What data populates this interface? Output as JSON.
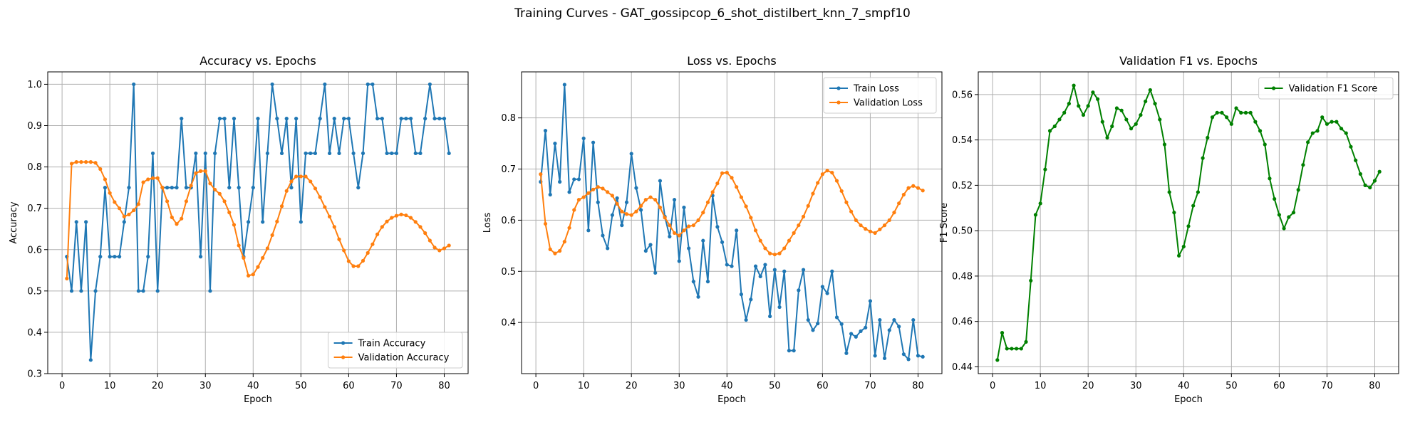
{
  "figure": {
    "suptitle": "Training Curves - GAT_gossipcop_6_shot_distilbert_knn_7_smpf10"
  },
  "chart_data": [
    {
      "type": "line",
      "title": "Accuracy vs. Epochs",
      "xlabel": "Epoch",
      "ylabel": "Accuracy",
      "xlim": [
        -3,
        85
      ],
      "ylim": [
        0.3,
        1.03
      ],
      "xticks": [
        0,
        10,
        20,
        30,
        40,
        50,
        60,
        70,
        80
      ],
      "yticks": [
        0.3,
        0.4,
        0.5,
        0.6,
        0.7,
        0.8,
        0.9,
        1.0
      ],
      "ytick_labels": [
        "0.3",
        "0.4",
        "0.5",
        "0.6",
        "0.7",
        "0.8",
        "0.9",
        "1.0"
      ],
      "grid": true,
      "legend": "lower right",
      "series": [
        {
          "name": "Train Accuracy",
          "color": "#1f77b4",
          "x": [
            1,
            2,
            3,
            4,
            5,
            6,
            7,
            8,
            9,
            10,
            11,
            12,
            13,
            14,
            15,
            16,
            17,
            18,
            19,
            20,
            21,
            22,
            23,
            24,
            25,
            26,
            27,
            28,
            29,
            30,
            31,
            32,
            33,
            34,
            35,
            36,
            37,
            38,
            39,
            40,
            41,
            42,
            43,
            44,
            45,
            46,
            47,
            48,
            49,
            50,
            51,
            52,
            53,
            54,
            55,
            56,
            57,
            58,
            59,
            60,
            61,
            62,
            63,
            64,
            65,
            66,
            67,
            68,
            69,
            70,
            71,
            72,
            73,
            74,
            75,
            76,
            77,
            78,
            79,
            80,
            81
          ],
          "y": [
            0.583,
            0.5,
            0.667,
            0.5,
            0.667,
            0.333,
            0.5,
            0.583,
            0.75,
            0.583,
            0.583,
            0.583,
            0.667,
            0.75,
            1.0,
            0.5,
            0.5,
            0.583,
            0.833,
            0.5,
            0.75,
            0.75,
            0.75,
            0.75,
            0.917,
            0.75,
            0.75,
            0.833,
            0.583,
            0.833,
            0.5,
            0.833,
            0.917,
            0.917,
            0.75,
            0.917,
            0.75,
            0.583,
            0.667,
            0.75,
            0.917,
            0.667,
            0.833,
            1.0,
            0.917,
            0.833,
            0.917,
            0.75,
            0.917,
            0.667,
            0.833,
            0.833,
            0.833,
            0.917,
            1.0,
            0.833,
            0.917,
            0.833,
            0.917,
            0.917,
            0.833,
            0.75,
            0.833,
            1.0,
            1.0,
            0.917,
            0.917,
            0.833,
            0.833,
            0.833,
            0.917,
            0.917,
            0.917,
            0.833,
            0.833,
            0.917,
            1.0,
            0.917,
            0.917,
            0.917,
            0.833
          ]
        },
        {
          "name": "Validation Accuracy",
          "color": "#ff7f0e",
          "x": [
            1,
            2,
            3,
            4,
            5,
            6,
            7,
            8,
            9,
            10,
            11,
            12,
            13,
            14,
            15,
            16,
            17,
            18,
            19,
            20,
            21,
            22,
            23,
            24,
            25,
            26,
            27,
            28,
            29,
            30,
            31,
            32,
            33,
            34,
            35,
            36,
            37,
            38,
            39,
            40,
            41,
            42,
            43,
            44,
            45,
            46,
            47,
            48,
            49,
            50,
            51,
            52,
            53,
            54,
            55,
            56,
            57,
            58,
            59,
            60,
            61,
            62,
            63,
            64,
            65,
            66,
            67,
            68,
            69,
            70,
            71,
            72,
            73,
            74,
            75,
            76,
            77,
            78,
            79,
            80,
            81
          ],
          "y": [
            0.53,
            0.808,
            0.812,
            0.812,
            0.812,
            0.812,
            0.81,
            0.795,
            0.77,
            0.737,
            0.715,
            0.7,
            0.68,
            0.685,
            0.695,
            0.71,
            0.763,
            0.77,
            0.773,
            0.773,
            0.75,
            0.717,
            0.678,
            0.662,
            0.675,
            0.717,
            0.755,
            0.785,
            0.79,
            0.79,
            0.76,
            0.745,
            0.735,
            0.717,
            0.69,
            0.66,
            0.61,
            0.58,
            0.537,
            0.54,
            0.558,
            0.58,
            0.603,
            0.635,
            0.668,
            0.705,
            0.742,
            0.765,
            0.777,
            0.777,
            0.777,
            0.765,
            0.748,
            0.727,
            0.703,
            0.68,
            0.655,
            0.625,
            0.598,
            0.572,
            0.56,
            0.56,
            0.573,
            0.592,
            0.613,
            0.637,
            0.655,
            0.668,
            0.677,
            0.682,
            0.685,
            0.683,
            0.677,
            0.667,
            0.655,
            0.64,
            0.622,
            0.605,
            0.598,
            0.603,
            0.61
          ]
        }
      ]
    },
    {
      "type": "line",
      "title": "Loss vs. Epochs",
      "xlabel": "Epoch",
      "ylabel": "Loss",
      "xlim": [
        -3,
        85
      ],
      "ylim": [
        0.3,
        0.89
      ],
      "xticks": [
        0,
        10,
        20,
        30,
        40,
        50,
        60,
        70,
        80
      ],
      "yticks": [
        0.4,
        0.5,
        0.6,
        0.7,
        0.8
      ],
      "ytick_labels": [
        "0.4",
        "0.5",
        "0.6",
        "0.7",
        "0.8"
      ],
      "grid": true,
      "legend": "upper right",
      "series": [
        {
          "name": "Train Loss",
          "color": "#1f77b4",
          "x": [
            1,
            2,
            3,
            4,
            5,
            6,
            7,
            8,
            9,
            10,
            11,
            12,
            13,
            14,
            15,
            16,
            17,
            18,
            19,
            20,
            21,
            22,
            23,
            24,
            25,
            26,
            27,
            28,
            29,
            30,
            31,
            32,
            33,
            34,
            35,
            36,
            37,
            38,
            39,
            40,
            41,
            42,
            43,
            44,
            45,
            46,
            47,
            48,
            49,
            50,
            51,
            52,
            53,
            54,
            55,
            56,
            57,
            58,
            59,
            60,
            61,
            62,
            63,
            64,
            65,
            66,
            67,
            68,
            69,
            70,
            71,
            72,
            73,
            74,
            75,
            76,
            77,
            78,
            79,
            80,
            81
          ],
          "y": [
            0.675,
            0.775,
            0.65,
            0.75,
            0.675,
            0.865,
            0.655,
            0.68,
            0.68,
            0.76,
            0.58,
            0.752,
            0.635,
            0.57,
            0.545,
            0.61,
            0.643,
            0.59,
            0.635,
            0.73,
            0.663,
            0.62,
            0.54,
            0.552,
            0.497,
            0.677,
            0.607,
            0.568,
            0.64,
            0.52,
            0.625,
            0.545,
            0.48,
            0.45,
            0.56,
            0.48,
            0.648,
            0.587,
            0.557,
            0.513,
            0.51,
            0.58,
            0.455,
            0.405,
            0.445,
            0.51,
            0.49,
            0.513,
            0.412,
            0.503,
            0.43,
            0.5,
            0.345,
            0.345,
            0.463,
            0.503,
            0.405,
            0.385,
            0.398,
            0.47,
            0.457,
            0.5,
            0.41,
            0.397,
            0.34,
            0.378,
            0.372,
            0.383,
            0.39,
            0.442,
            0.335,
            0.405,
            0.33,
            0.385,
            0.405,
            0.392,
            0.338,
            0.328,
            0.405,
            0.335,
            0.333
          ]
        },
        {
          "name": "Validation Loss",
          "color": "#ff7f0e",
          "x": [
            1,
            2,
            3,
            4,
            5,
            6,
            7,
            8,
            9,
            10,
            11,
            12,
            13,
            14,
            15,
            16,
            17,
            18,
            19,
            20,
            21,
            22,
            23,
            24,
            25,
            26,
            27,
            28,
            29,
            30,
            31,
            32,
            33,
            34,
            35,
            36,
            37,
            38,
            39,
            40,
            41,
            42,
            43,
            44,
            45,
            46,
            47,
            48,
            49,
            50,
            51,
            52,
            53,
            54,
            55,
            56,
            57,
            58,
            59,
            60,
            61,
            62,
            63,
            64,
            65,
            66,
            67,
            68,
            69,
            70,
            71,
            72,
            73,
            74,
            75,
            76,
            77,
            78,
            79,
            80,
            81
          ],
          "y": [
            0.69,
            0.593,
            0.543,
            0.535,
            0.54,
            0.558,
            0.585,
            0.62,
            0.64,
            0.645,
            0.653,
            0.66,
            0.665,
            0.662,
            0.655,
            0.648,
            0.632,
            0.617,
            0.612,
            0.61,
            0.617,
            0.628,
            0.64,
            0.645,
            0.64,
            0.625,
            0.605,
            0.59,
            0.575,
            0.57,
            0.58,
            0.588,
            0.59,
            0.6,
            0.615,
            0.635,
            0.655,
            0.672,
            0.692,
            0.693,
            0.683,
            0.665,
            0.645,
            0.627,
            0.605,
            0.58,
            0.56,
            0.545,
            0.535,
            0.533,
            0.535,
            0.545,
            0.56,
            0.575,
            0.59,
            0.607,
            0.628,
            0.652,
            0.673,
            0.69,
            0.697,
            0.693,
            0.677,
            0.657,
            0.635,
            0.617,
            0.6,
            0.59,
            0.583,
            0.578,
            0.575,
            0.582,
            0.59,
            0.6,
            0.615,
            0.633,
            0.65,
            0.663,
            0.667,
            0.663,
            0.658
          ]
        }
      ]
    },
    {
      "type": "line",
      "title": "Validation F1 vs. Epochs",
      "xlabel": "Epoch",
      "ylabel": "F1 Score",
      "xlim": [
        -3,
        85
      ],
      "ylim": [
        0.437,
        0.57
      ],
      "xticks": [
        0,
        10,
        20,
        30,
        40,
        50,
        60,
        70,
        80
      ],
      "yticks": [
        0.44,
        0.46,
        0.48,
        0.5,
        0.52,
        0.54,
        0.56
      ],
      "ytick_labels": [
        "0.44",
        "0.46",
        "0.48",
        "0.50",
        "0.52",
        "0.54",
        "0.56"
      ],
      "grid": true,
      "legend": "upper right",
      "series": [
        {
          "name": "Validation F1 Score",
          "color": "#008000",
          "x": [
            1,
            2,
            3,
            4,
            5,
            6,
            7,
            8,
            9,
            10,
            11,
            12,
            13,
            14,
            15,
            16,
            17,
            18,
            19,
            20,
            21,
            22,
            23,
            24,
            25,
            26,
            27,
            28,
            29,
            30,
            31,
            32,
            33,
            34,
            35,
            36,
            37,
            38,
            39,
            40,
            41,
            42,
            43,
            44,
            45,
            46,
            47,
            48,
            49,
            50,
            51,
            52,
            53,
            54,
            55,
            56,
            57,
            58,
            59,
            60,
            61,
            62,
            63,
            64,
            65,
            66,
            67,
            68,
            69,
            70,
            71,
            72,
            73,
            74,
            75,
            76,
            77,
            78,
            79,
            80,
            81
          ],
          "y": [
            0.443,
            0.455,
            0.448,
            0.448,
            0.448,
            0.448,
            0.451,
            0.478,
            0.507,
            0.512,
            0.527,
            0.544,
            0.546,
            0.549,
            0.552,
            0.556,
            0.564,
            0.555,
            0.551,
            0.555,
            0.561,
            0.558,
            0.548,
            0.541,
            0.546,
            0.554,
            0.553,
            0.549,
            0.545,
            0.547,
            0.551,
            0.557,
            0.562,
            0.556,
            0.549,
            0.538,
            0.517,
            0.508,
            0.489,
            0.493,
            0.502,
            0.511,
            0.517,
            0.532,
            0.541,
            0.55,
            0.552,
            0.552,
            0.55,
            0.547,
            0.554,
            0.552,
            0.552,
            0.552,
            0.548,
            0.544,
            0.538,
            0.523,
            0.514,
            0.507,
            0.501,
            0.506,
            0.508,
            0.518,
            0.529,
            0.539,
            0.543,
            0.544,
            0.55,
            0.547,
            0.548,
            0.548,
            0.545,
            0.543,
            0.537,
            0.531,
            0.525,
            0.52,
            0.519,
            0.522,
            0.526
          ]
        }
      ]
    }
  ]
}
